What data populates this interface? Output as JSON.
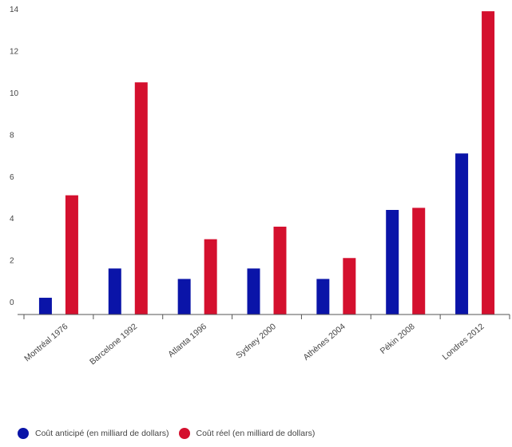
{
  "chart_data": {
    "type": "bar",
    "categories": [
      "Montréal 1976",
      "Barcelone 1992",
      "Atlanta 1996",
      "Sydney 2000",
      "Athènes 2004",
      "Pékin 2008",
      "Londres 2012"
    ],
    "series": [
      {
        "name": "Coût anticipé (en milliard de dollars)",
        "color": "#0a14a8",
        "values": [
          0.8,
          2.2,
          1.7,
          2.2,
          1.7,
          5.0,
          7.7
        ]
      },
      {
        "name": "Coût réel (en milliard de dollars)",
        "color": "#d4102e",
        "values": [
          5.7,
          11.1,
          3.6,
          4.2,
          2.7,
          5.1,
          14.5
        ]
      }
    ],
    "yticks": [
      0,
      2,
      4,
      6,
      8,
      10,
      12,
      14
    ],
    "ylim": [
      0,
      14.5
    ],
    "grid": false,
    "legend_position": "bottom"
  }
}
